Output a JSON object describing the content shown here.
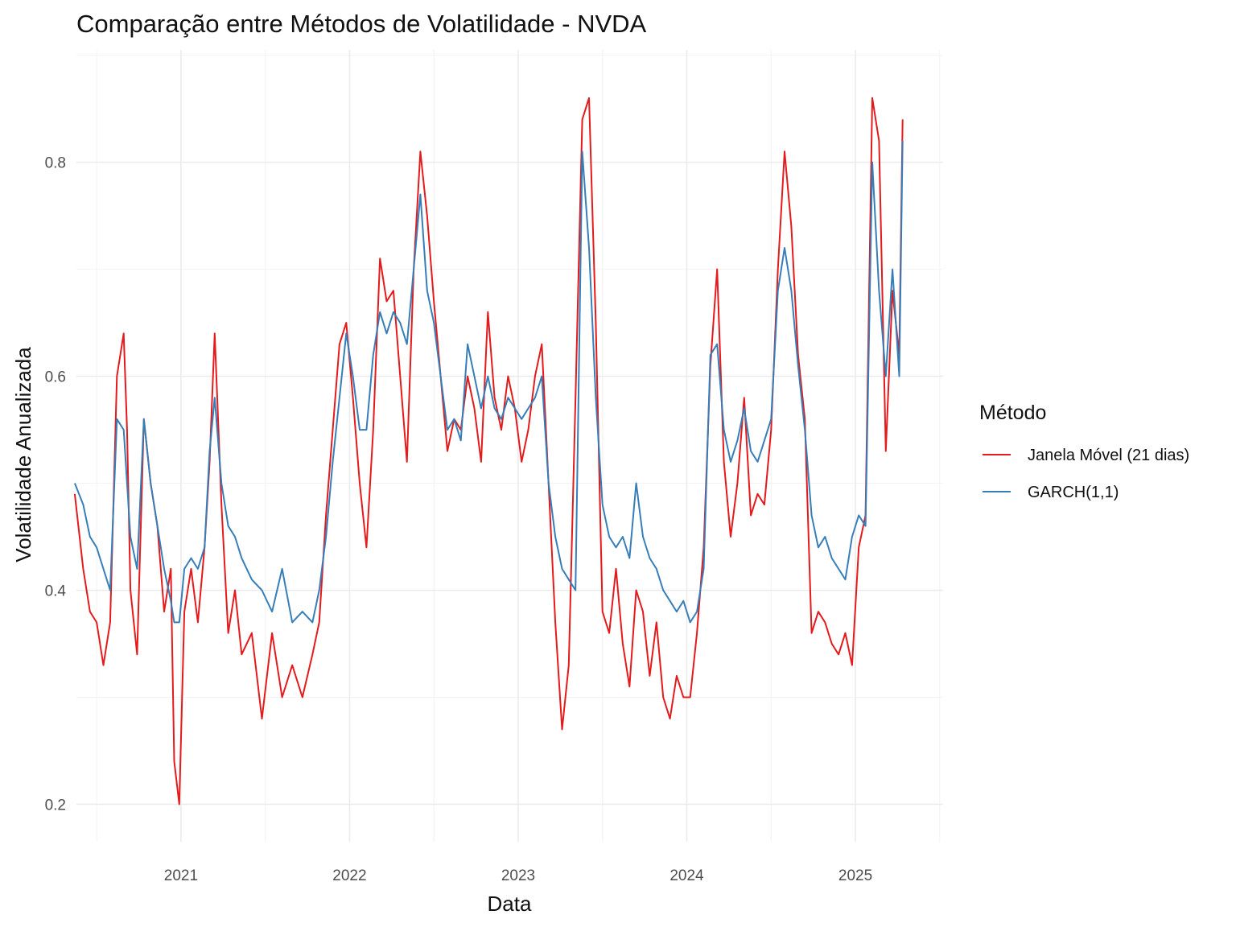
{
  "chart_data": {
    "type": "line",
    "title": "Comparação entre Métodos de Volatilidade - NVDA",
    "xlabel": "Data",
    "ylabel": "Volatilidade Anualizada",
    "xlim": [
      2020.38,
      2025.52
    ],
    "ylim": [
      0.165,
      0.905
    ],
    "x_ticks": [
      2021,
      2022,
      2023,
      2024,
      2025
    ],
    "x_tick_labels": [
      "2021",
      "2022",
      "2023",
      "2024",
      "2025"
    ],
    "y_ticks": [
      0.2,
      0.4,
      0.6,
      0.8
    ],
    "y_tick_labels": [
      "0.2",
      "0.4",
      "0.6",
      "0.8"
    ],
    "grid": true,
    "legend": {
      "title": "Método",
      "position": "right"
    },
    "series": [
      {
        "name": "Janela Móvel (21 dias)",
        "color": "#e41a1c",
        "x": [
          2020.37,
          2020.42,
          2020.46,
          2020.5,
          2020.54,
          2020.58,
          2020.62,
          2020.66,
          2020.68,
          2020.7,
          2020.74,
          2020.78,
          2020.82,
          2020.86,
          2020.9,
          2020.94,
          2020.96,
          2020.99,
          2021.02,
          2021.06,
          2021.1,
          2021.14,
          2021.17,
          2021.2,
          2021.24,
          2021.28,
          2021.32,
          2021.36,
          2021.42,
          2021.48,
          2021.54,
          2021.6,
          2021.66,
          2021.72,
          2021.78,
          2021.82,
          2021.86,
          2021.9,
          2021.94,
          2021.98,
          2022.02,
          2022.06,
          2022.1,
          2022.14,
          2022.18,
          2022.22,
          2022.26,
          2022.3,
          2022.34,
          2022.38,
          2022.42,
          2022.46,
          2022.5,
          2022.54,
          2022.58,
          2022.62,
          2022.66,
          2022.7,
          2022.74,
          2022.78,
          2022.82,
          2022.86,
          2022.9,
          2022.94,
          2022.98,
          2023.02,
          2023.06,
          2023.1,
          2023.14,
          2023.18,
          2023.22,
          2023.26,
          2023.3,
          2023.34,
          2023.38,
          2023.42,
          2023.46,
          2023.5,
          2023.54,
          2023.58,
          2023.62,
          2023.66,
          2023.7,
          2023.74,
          2023.78,
          2023.82,
          2023.86,
          2023.9,
          2023.94,
          2023.98,
          2024.02,
          2024.06,
          2024.1,
          2024.14,
          2024.18,
          2024.22,
          2024.26,
          2024.3,
          2024.34,
          2024.38,
          2024.42,
          2024.46,
          2024.5,
          2024.54,
          2024.58,
          2024.62,
          2024.66,
          2024.7,
          2024.74,
          2024.78,
          2024.82,
          2024.86,
          2024.9,
          2024.94,
          2024.98,
          2025.02,
          2025.06,
          2025.1,
          2025.14,
          2025.18,
          2025.22,
          2025.26,
          2025.28
        ],
        "values": [
          0.49,
          0.42,
          0.38,
          0.37,
          0.33,
          0.37,
          0.6,
          0.64,
          0.55,
          0.4,
          0.34,
          0.56,
          0.5,
          0.46,
          0.38,
          0.42,
          0.24,
          0.2,
          0.38,
          0.42,
          0.37,
          0.44,
          0.52,
          0.64,
          0.48,
          0.36,
          0.4,
          0.34,
          0.36,
          0.28,
          0.36,
          0.3,
          0.33,
          0.3,
          0.34,
          0.37,
          0.47,
          0.55,
          0.63,
          0.65,
          0.58,
          0.5,
          0.44,
          0.55,
          0.71,
          0.67,
          0.68,
          0.6,
          0.52,
          0.7,
          0.81,
          0.75,
          0.67,
          0.6,
          0.53,
          0.56,
          0.55,
          0.6,
          0.57,
          0.52,
          0.66,
          0.58,
          0.55,
          0.6,
          0.57,
          0.52,
          0.55,
          0.6,
          0.63,
          0.5,
          0.37,
          0.27,
          0.33,
          0.58,
          0.84,
          0.86,
          0.65,
          0.38,
          0.36,
          0.42,
          0.35,
          0.31,
          0.4,
          0.38,
          0.32,
          0.37,
          0.3,
          0.28,
          0.32,
          0.3,
          0.3,
          0.36,
          0.44,
          0.61,
          0.7,
          0.52,
          0.45,
          0.5,
          0.58,
          0.47,
          0.49,
          0.48,
          0.55,
          0.7,
          0.81,
          0.74,
          0.62,
          0.56,
          0.36,
          0.38,
          0.37,
          0.35,
          0.34,
          0.36,
          0.33,
          0.44,
          0.47,
          0.86,
          0.82,
          0.53,
          0.68,
          0.62,
          0.84
        ]
      },
      {
        "name": "GARCH(1,1)",
        "color": "#377eb8",
        "x": [
          2020.37,
          2020.42,
          2020.46,
          2020.5,
          2020.54,
          2020.58,
          2020.62,
          2020.66,
          2020.68,
          2020.7,
          2020.74,
          2020.78,
          2020.82,
          2020.86,
          2020.9,
          2020.94,
          2020.96,
          2020.99,
          2021.02,
          2021.06,
          2021.1,
          2021.14,
          2021.17,
          2021.2,
          2021.24,
          2021.28,
          2021.32,
          2021.36,
          2021.42,
          2021.48,
          2021.54,
          2021.6,
          2021.66,
          2021.72,
          2021.78,
          2021.82,
          2021.86,
          2021.9,
          2021.94,
          2021.98,
          2022.02,
          2022.06,
          2022.1,
          2022.14,
          2022.18,
          2022.22,
          2022.26,
          2022.3,
          2022.34,
          2022.38,
          2022.42,
          2022.46,
          2022.5,
          2022.54,
          2022.58,
          2022.62,
          2022.66,
          2022.7,
          2022.74,
          2022.78,
          2022.82,
          2022.86,
          2022.9,
          2022.94,
          2022.98,
          2023.02,
          2023.06,
          2023.1,
          2023.14,
          2023.18,
          2023.22,
          2023.26,
          2023.3,
          2023.34,
          2023.38,
          2023.42,
          2023.46,
          2023.5,
          2023.54,
          2023.58,
          2023.62,
          2023.66,
          2023.7,
          2023.74,
          2023.78,
          2023.82,
          2023.86,
          2023.9,
          2023.94,
          2023.98,
          2024.02,
          2024.06,
          2024.1,
          2024.14,
          2024.18,
          2024.22,
          2024.26,
          2024.3,
          2024.34,
          2024.38,
          2024.42,
          2024.46,
          2024.5,
          2024.54,
          2024.58,
          2024.62,
          2024.66,
          2024.7,
          2024.74,
          2024.78,
          2024.82,
          2024.86,
          2024.9,
          2024.94,
          2024.98,
          2025.02,
          2025.06,
          2025.1,
          2025.14,
          2025.18,
          2025.22,
          2025.26,
          2025.28
        ],
        "values": [
          0.5,
          0.48,
          0.45,
          0.44,
          0.42,
          0.4,
          0.56,
          0.55,
          0.5,
          0.45,
          0.42,
          0.56,
          0.5,
          0.46,
          0.42,
          0.39,
          0.37,
          0.37,
          0.42,
          0.43,
          0.42,
          0.44,
          0.53,
          0.58,
          0.5,
          0.46,
          0.45,
          0.43,
          0.41,
          0.4,
          0.38,
          0.42,
          0.37,
          0.38,
          0.37,
          0.4,
          0.45,
          0.52,
          0.58,
          0.64,
          0.6,
          0.55,
          0.55,
          0.62,
          0.66,
          0.64,
          0.66,
          0.65,
          0.63,
          0.7,
          0.77,
          0.68,
          0.65,
          0.6,
          0.55,
          0.56,
          0.54,
          0.63,
          0.6,
          0.57,
          0.6,
          0.57,
          0.56,
          0.58,
          0.57,
          0.56,
          0.57,
          0.58,
          0.6,
          0.5,
          0.45,
          0.42,
          0.41,
          0.4,
          0.81,
          0.72,
          0.58,
          0.48,
          0.45,
          0.44,
          0.45,
          0.43,
          0.5,
          0.45,
          0.43,
          0.42,
          0.4,
          0.39,
          0.38,
          0.39,
          0.37,
          0.38,
          0.42,
          0.62,
          0.63,
          0.55,
          0.52,
          0.54,
          0.57,
          0.53,
          0.52,
          0.54,
          0.56,
          0.68,
          0.72,
          0.68,
          0.61,
          0.55,
          0.47,
          0.44,
          0.45,
          0.43,
          0.42,
          0.41,
          0.45,
          0.47,
          0.46,
          0.8,
          0.68,
          0.6,
          0.7,
          0.6,
          0.82
        ]
      }
    ]
  }
}
